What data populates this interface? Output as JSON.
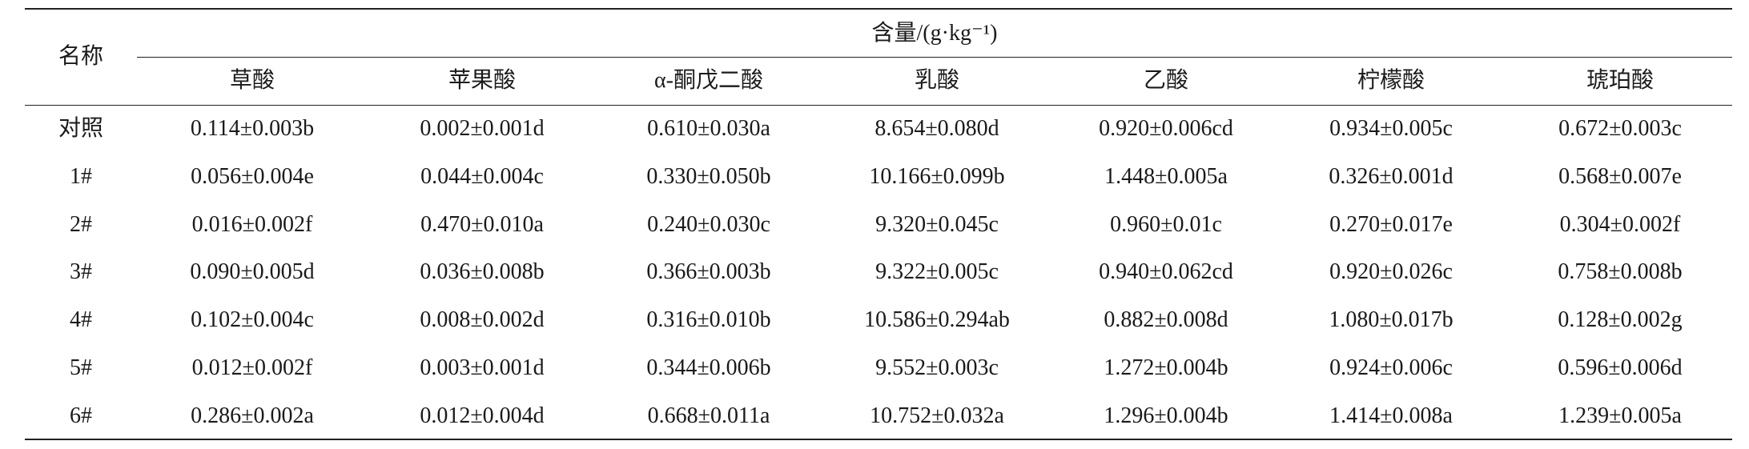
{
  "table": {
    "name_header": "名称",
    "group_header": "含量/(g·kg⁻¹)",
    "columns": [
      "草酸",
      "苹果酸",
      "α-酮戊二酸",
      "乳酸",
      "乙酸",
      "柠檬酸",
      "琥珀酸"
    ],
    "rows": [
      [
        "对照",
        "0.114±0.003b",
        "0.002±0.001d",
        "0.610±0.030a",
        "8.654±0.080d",
        "0.920±0.006cd",
        "0.934±0.005c",
        "0.672±0.003c"
      ],
      [
        "1#",
        "0.056±0.004e",
        "0.044±0.004c",
        "0.330±0.050b",
        "10.166±0.099b",
        "1.448±0.005a",
        "0.326±0.001d",
        "0.568±0.007e"
      ],
      [
        "2#",
        "0.016±0.002f",
        "0.470±0.010a",
        "0.240±0.030c",
        "9.320±0.045c",
        "0.960±0.01c",
        "0.270±0.017e",
        "0.304±0.002f"
      ],
      [
        "3#",
        "0.090±0.005d",
        "0.036±0.008b",
        "0.366±0.003b",
        "9.322±0.005c",
        "0.940±0.062cd",
        "0.920±0.026c",
        "0.758±0.008b"
      ],
      [
        "4#",
        "0.102±0.004c",
        "0.008±0.002d",
        "0.316±0.010b",
        "10.586±0.294ab",
        "0.882±0.008d",
        "1.080±0.017b",
        "0.128±0.002g"
      ],
      [
        "5#",
        "0.012±0.002f",
        "0.003±0.001d",
        "0.344±0.006b",
        "9.552±0.003c",
        "1.272±0.004b",
        "0.924±0.006c",
        "0.596±0.006d"
      ],
      [
        "6#",
        "0.286±0.002a",
        "0.012±0.004d",
        "0.668±0.011a",
        "10.752±0.032a",
        "1.296±0.004b",
        "1.414±0.008a",
        "1.239±0.005a"
      ]
    ]
  }
}
